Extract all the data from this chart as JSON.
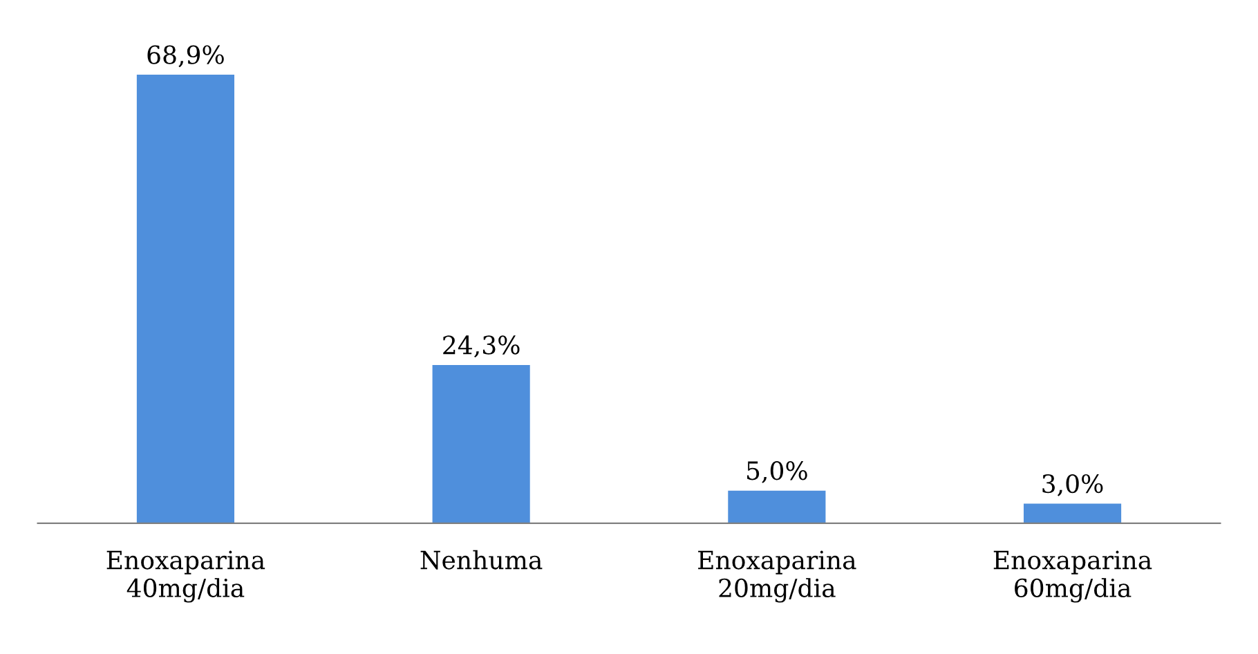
{
  "chart_data": {
    "type": "bar",
    "categories": [
      "Enoxaparina\n40mg/dia",
      "Nenhuma",
      "Enoxaparina\n20mg/dia",
      "Enoxaparina\n60mg/dia"
    ],
    "values": [
      68.9,
      24.3,
      5.0,
      3.0
    ],
    "value_labels": [
      "68,9%",
      "24,3%",
      "5,0%",
      "3,0%"
    ],
    "color": "#4f8fdc"
  }
}
